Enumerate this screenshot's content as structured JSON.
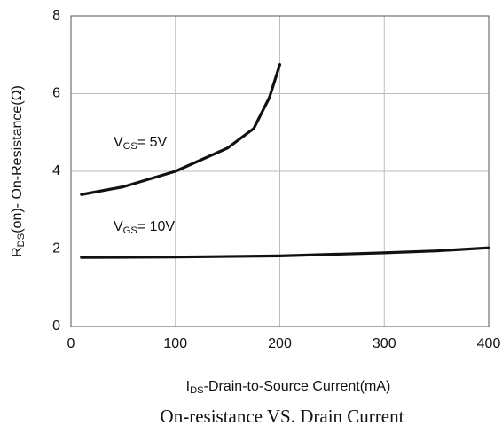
{
  "chart_data": {
    "type": "line",
    "title": "On-resistance VS. Drain Current",
    "x_label": [
      "I",
      "DS",
      "-Drain-to-Source  Current(mA)"
    ],
    "y_label": [
      "R",
      "DS",
      "(on)- On-Resistance(Ω)"
    ],
    "annotations": [
      [
        "V",
        "GS",
        "= 5V"
      ],
      [
        "V",
        "GS",
        "= 10V"
      ]
    ],
    "series": [
      {
        "color": "#111111",
        "x": [
          10,
          50,
          100,
          150,
          175,
          190,
          200
        ],
        "values": [
          3.4,
          3.6,
          4.0,
          4.6,
          5.1,
          5.9,
          6.75
        ]
      },
      {
        "color": "#111111",
        "x": [
          10,
          100,
          200,
          300,
          350,
          400
        ],
        "values": [
          1.78,
          1.79,
          1.82,
          1.9,
          1.95,
          2.03
        ]
      }
    ],
    "xlim": [
      0,
      400
    ],
    "xticks": [
      0,
      100,
      200,
      300,
      400
    ],
    "ylim": [
      0,
      8
    ],
    "yticks": [
      0,
      2,
      4,
      6,
      8
    ],
    "grid": true
  }
}
